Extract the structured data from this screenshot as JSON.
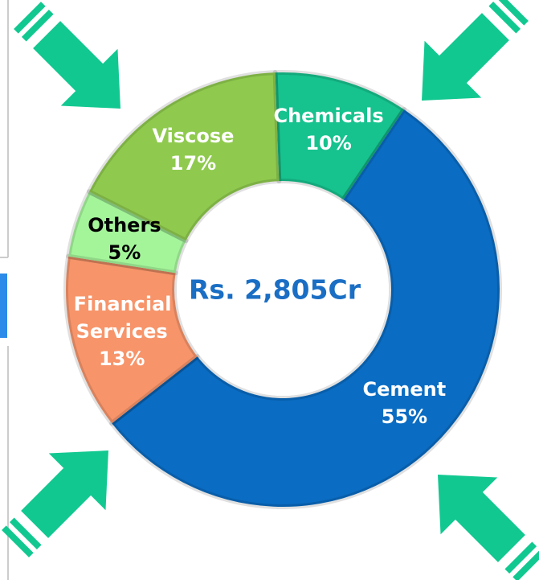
{
  "chart_data": {
    "type": "donut",
    "center_text": "Rs. 2,805Cr",
    "categories": [
      "Chemicals",
      "Cement",
      "Financial Services",
      "Others",
      "Viscose"
    ],
    "values": [
      10,
      55,
      13,
      5,
      17
    ],
    "value_labels": [
      "10%",
      "55%",
      "13%",
      "5%",
      "17%"
    ],
    "colors": [
      "#16c28e",
      "#0a6cc2",
      "#f7946a",
      "#a4f59a",
      "#8fca4e"
    ],
    "label_colors": [
      "#ffffff",
      "#ffffff",
      "#ffffff",
      "#000000",
      "#ffffff"
    ]
  }
}
